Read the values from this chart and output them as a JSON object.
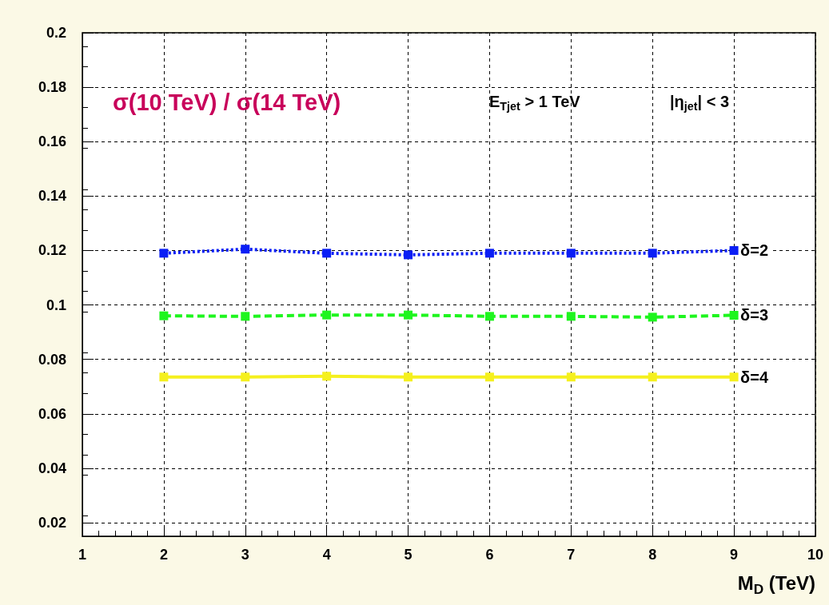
{
  "chart_data": {
    "type": "line",
    "title": "σ(10 TeV) / σ(14 TeV)",
    "xlabel": "M$_{D}$ (TeV)",
    "annotations": [
      "E$_{Tjet}$ > 1 TeV",
      "|η$_{jet}$| < 3"
    ],
    "x": [
      2,
      3,
      4,
      5,
      6,
      7,
      8,
      9
    ],
    "series": [
      {
        "name": "δ=2",
        "color": "#0a1ef5",
        "line_style": "dotted",
        "values": [
          0.119,
          0.1205,
          0.119,
          0.1184,
          0.119,
          0.119,
          0.119,
          0.12
        ]
      },
      {
        "name": "δ=3",
        "color": "#1ef51e",
        "line_style": "dashed",
        "values": [
          0.096,
          0.0958,
          0.0963,
          0.0963,
          0.0958,
          0.0958,
          0.0955,
          0.0962
        ]
      },
      {
        "name": "δ=4",
        "color": "#f5f01e",
        "line_style": "solid",
        "values": [
          0.0735,
          0.0735,
          0.0738,
          0.0735,
          0.0735,
          0.0735,
          0.0735,
          0.0735
        ]
      }
    ],
    "xlim": [
      1,
      10
    ],
    "xticks": [
      1,
      2,
      3,
      4,
      5,
      6,
      7,
      8,
      9,
      10
    ],
    "ylim": [
      0.015,
      0.2
    ],
    "yticks": [
      0.02,
      0.04,
      0.06,
      0.08,
      0.1,
      0.12,
      0.14,
      0.16,
      0.18,
      0.2
    ],
    "grid": true,
    "legend": false,
    "marker": "square"
  }
}
